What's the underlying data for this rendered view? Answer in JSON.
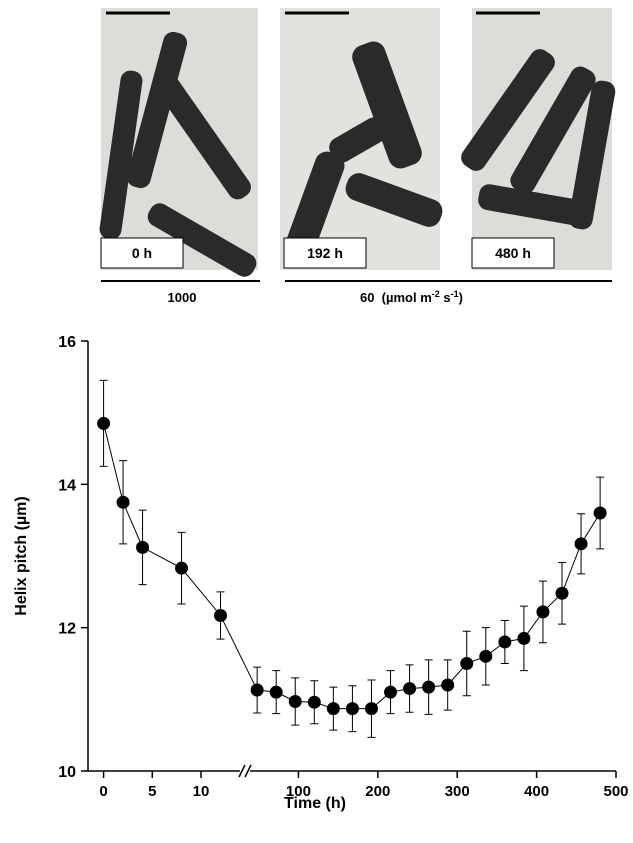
{
  "panels": {
    "labels": [
      "0 h",
      "192 h",
      "480 h"
    ],
    "light_labels": [
      "1000",
      "60  (µmol m",
      "-2",
      " s",
      "-1",
      ")"
    ]
  },
  "chart_data": {
    "type": "scatter",
    "ylabel": "Helix pitch (µm)",
    "xlabel": "Time (h)",
    "ylim": [
      10,
      16
    ],
    "yticks": [
      10,
      12,
      14,
      16
    ],
    "x_segments": [
      {
        "xlim": [
          -1.6,
          14
        ],
        "xticks": [
          0,
          5,
          10
        ]
      },
      {
        "xlim": [
          39,
          500
        ],
        "xticks": [
          100,
          200,
          300,
          400,
          500
        ]
      }
    ],
    "x": [
      0,
      2,
      4,
      8,
      12,
      48,
      72,
      96,
      120,
      144,
      168,
      192,
      216,
      240,
      264,
      288,
      312,
      336,
      360,
      384,
      408,
      432,
      456,
      480
    ],
    "series": [
      {
        "color": "#000000",
        "values": [
          14.85,
          13.75,
          13.12,
          12.83,
          12.17,
          11.13,
          11.1,
          10.97,
          10.96,
          10.87,
          10.87,
          10.87,
          11.1,
          11.15,
          11.17,
          11.2,
          11.5,
          11.6,
          11.8,
          11.85,
          12.22,
          12.48,
          13.17,
          13.6
        ],
        "errors": [
          0.6,
          0.58,
          0.52,
          0.5,
          0.33,
          0.32,
          0.3,
          0.33,
          0.3,
          0.3,
          0.32,
          0.4,
          0.3,
          0.33,
          0.38,
          0.35,
          0.45,
          0.4,
          0.3,
          0.45,
          0.43,
          0.43,
          0.42,
          0.5
        ]
      }
    ]
  }
}
